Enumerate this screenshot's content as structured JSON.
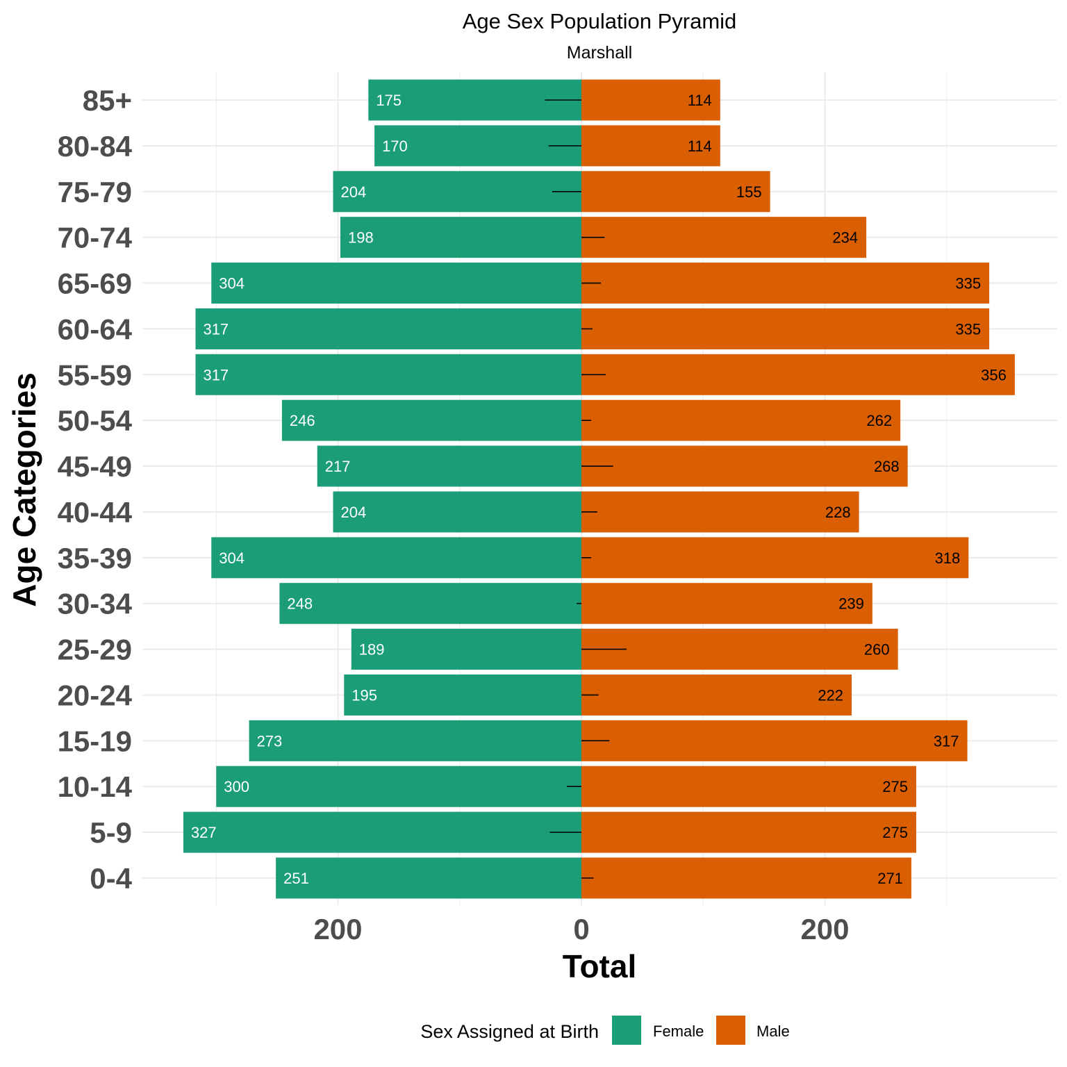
{
  "chart_data": {
    "type": "bar",
    "orientation": "horizontal-pyramid",
    "title": "Age Sex Population Pyramid",
    "subtitle": "Marshall",
    "xlabel": "Total",
    "ylabel": "Age Categories",
    "categories": [
      "0-4",
      "5-9",
      "10-14",
      "15-19",
      "20-24",
      "25-29",
      "30-34",
      "35-39",
      "40-44",
      "45-49",
      "50-54",
      "55-59",
      "60-64",
      "65-69",
      "70-74",
      "75-79",
      "80-84",
      "85+"
    ],
    "series": [
      {
        "name": "Female",
        "color": "#1b9e77",
        "values": [
          251,
          327,
          300,
          273,
          195,
          189,
          248,
          304,
          204,
          217,
          246,
          317,
          317,
          304,
          198,
          204,
          170,
          175
        ]
      },
      {
        "name": "Male",
        "color": "#d95f02",
        "values": [
          271,
          275,
          275,
          317,
          222,
          260,
          239,
          318,
          228,
          268,
          262,
          356,
          335,
          335,
          234,
          155,
          114,
          114
        ]
      }
    ],
    "difference_segments": [
      10,
      -26,
      -12,
      23,
      14,
      37,
      -4,
      8,
      13,
      26,
      8,
      20,
      9,
      16,
      19,
      -24,
      -27,
      -30
    ],
    "xticks": [
      {
        "value": -200,
        "label": "200"
      },
      {
        "value": 0,
        "label": "0"
      },
      {
        "value": 200,
        "label": "200"
      }
    ],
    "xlim": [
      -360,
      395
    ],
    "grid": true,
    "legend": {
      "title": "Sex Assigned at Birth",
      "position": "bottom",
      "entries": [
        "Female",
        "Male"
      ]
    }
  }
}
